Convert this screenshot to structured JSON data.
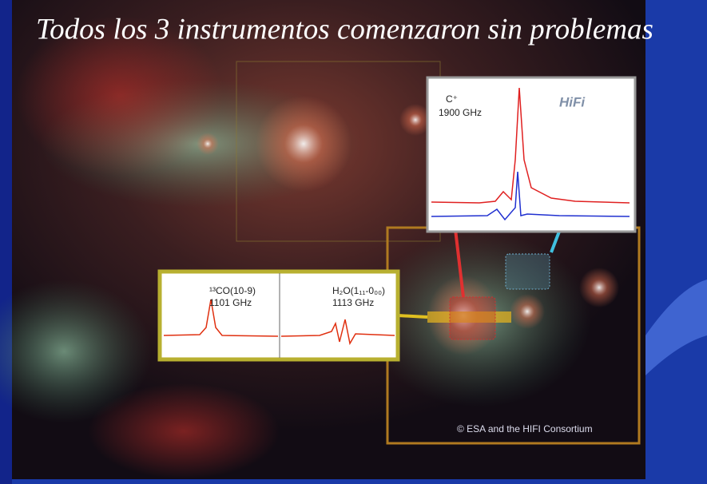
{
  "slide": {
    "title": "Todos los 3 instrumentos comenzaron sin problemas",
    "spectrum_top": {
      "line": "C⁺",
      "frequency": "1900 GHz",
      "logo": "HiFi"
    },
    "spectrum_left": {
      "line": "¹³CO(10-9)",
      "frequency": "1101 GHz"
    },
    "spectrum_right": {
      "line": "H₂O(1₁₁-0₀₀)",
      "frequency": "1113 GHz"
    },
    "credit": "© ESA and the HIFI Consortium"
  }
}
